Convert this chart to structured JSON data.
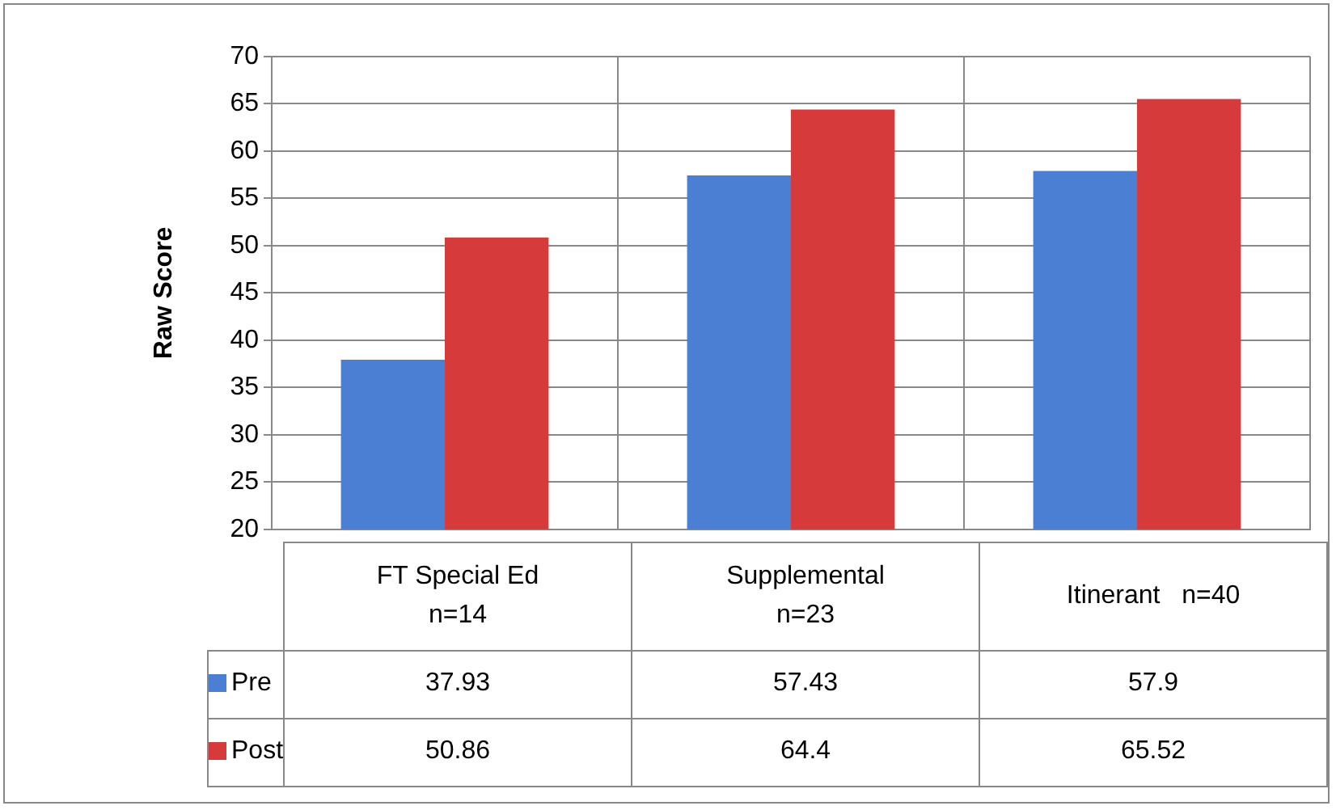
{
  "chart_data": {
    "type": "bar",
    "ylabel": "Raw Score",
    "categories": [
      "FT Special Ed\nn=14",
      "Supplemental\nn=23",
      "Itinerant   n=40"
    ],
    "series": [
      {
        "name": "Pre",
        "color": "#4a7fd4",
        "values": [
          37.93,
          57.43,
          57.9
        ]
      },
      {
        "name": "Post",
        "color": "#d63a3a",
        "values": [
          50.86,
          64.4,
          65.52
        ]
      }
    ],
    "ylim": [
      20,
      70
    ],
    "yticks": [
      20,
      25,
      30,
      35,
      40,
      45,
      50,
      55,
      60,
      65,
      70
    ],
    "grid": "y",
    "data_labels": true,
    "legend": "bottom"
  }
}
